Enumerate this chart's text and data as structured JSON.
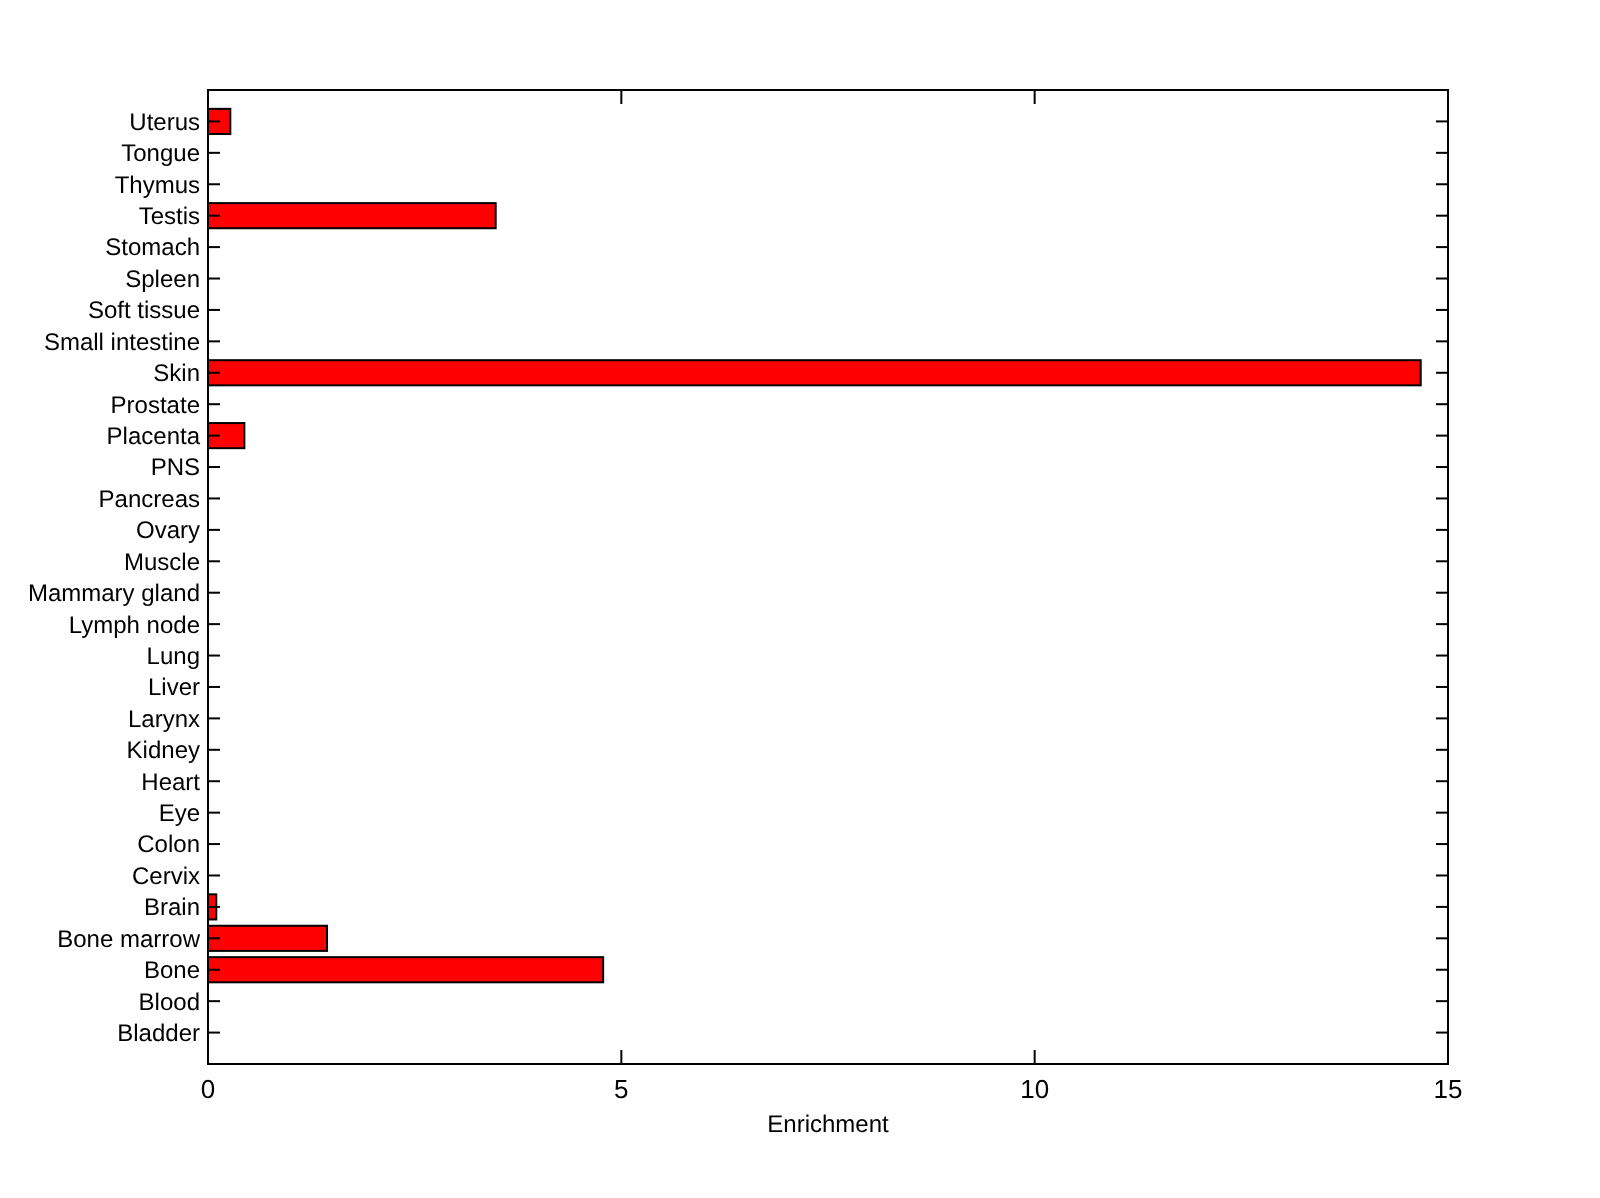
{
  "chart_data": {
    "type": "bar",
    "orientation": "horizontal",
    "xlabel": "Enrichment",
    "categories": [
      "Uterus",
      "Tongue",
      "Thymus",
      "Testis",
      "Stomach",
      "Spleen",
      "Soft tissue",
      "Small intestine",
      "Skin",
      "Prostate",
      "Placenta",
      "PNS",
      "Pancreas",
      "Ovary",
      "Muscle",
      "Mammary gland",
      "Lymph node",
      "Lung",
      "Liver",
      "Larynx",
      "Kidney",
      "Heart",
      "Eye",
      "Colon",
      "Cervix",
      "Brain",
      "Bone marrow",
      "Bone",
      "Blood",
      "Bladder"
    ],
    "values": [
      0.27,
      0,
      0,
      3.48,
      0,
      0,
      0,
      0,
      14.67,
      0,
      0.44,
      0,
      0,
      0,
      0,
      0,
      0,
      0,
      0,
      0,
      0,
      0,
      0,
      0,
      0,
      0.1,
      1.44,
      4.78,
      0,
      0
    ],
    "color": "#ff0000",
    "xlim": [
      0,
      15
    ],
    "xticks": [
      0,
      5,
      10,
      15
    ],
    "grid": false
  }
}
